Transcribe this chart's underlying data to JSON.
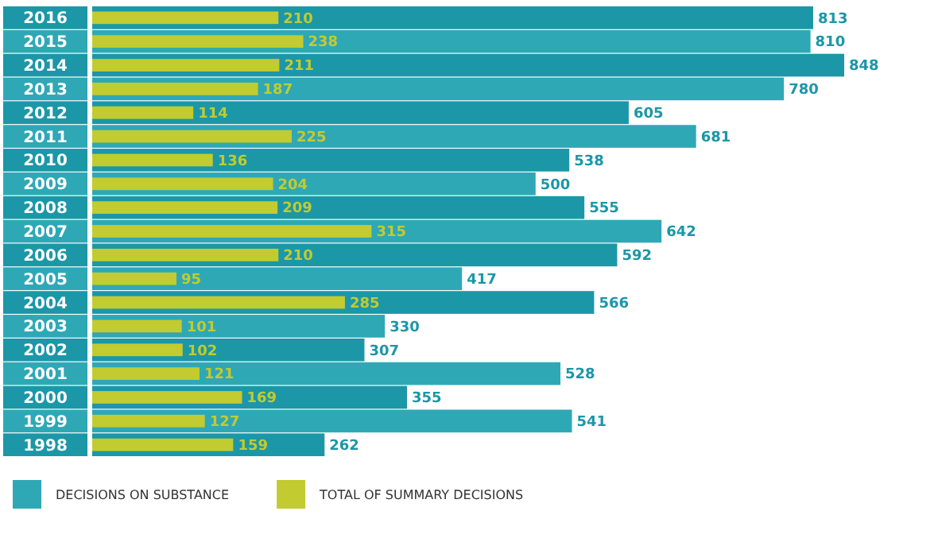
{
  "chart_data": {
    "type": "bar",
    "orientation": "horizontal",
    "categories": [
      "2016",
      "2015",
      "2014",
      "2013",
      "2012",
      "2011",
      "2010",
      "2009",
      "2008",
      "2007",
      "2006",
      "2005",
      "2004",
      "2003",
      "2002",
      "2001",
      "2000",
      "1999",
      "1998"
    ],
    "series": [
      {
        "name": "DECISIONS ON SUBSTANCE",
        "color": "#2fa8b6",
        "colors": [
          "#1b97a8",
          "#2fa8b6",
          "#1b97a8",
          "#2fa8b6",
          "#1b97a8",
          "#2fa8b6",
          "#1b97a8",
          "#2fa8b6",
          "#1b97a8",
          "#2fa8b6",
          "#1b97a8",
          "#2fa8b6",
          "#1b97a8",
          "#2fa8b6",
          "#1b97a8",
          "#2fa8b6",
          "#1b97a8",
          "#2fa8b6",
          "#1b97a8"
        ],
        "values": [
          813,
          810,
          848,
          780,
          605,
          681,
          538,
          500,
          555,
          642,
          592,
          417,
          566,
          330,
          307,
          528,
          355,
          541,
          262
        ]
      },
      {
        "name": "TOTAL OF SUMMARY DECISIONS",
        "color": "#c2cb2f",
        "values": [
          210,
          238,
          211,
          187,
          114,
          225,
          136,
          204,
          209,
          315,
          210,
          95,
          285,
          101,
          102,
          121,
          169,
          127,
          159
        ]
      }
    ],
    "xlim": [
      0,
      848
    ],
    "data_labels": true,
    "legend": "bottom left",
    "tick_labels": "y",
    "grid": false
  }
}
